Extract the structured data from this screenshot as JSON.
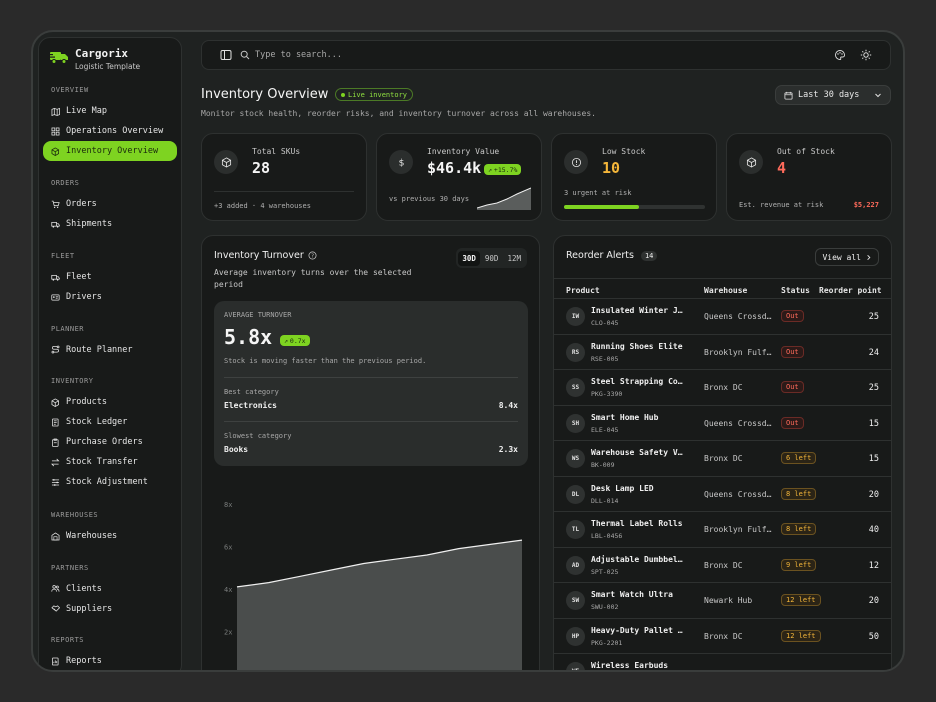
{
  "brand": {
    "name": "Cargorix",
    "subtitle": "Logistic Template",
    "accent": "#7ed321"
  },
  "sidebar": {
    "sections": [
      {
        "heading": "OVERVIEW",
        "items": [
          {
            "label": "Live Map",
            "icon": "map-icon"
          },
          {
            "label": "Operations Overview",
            "icon": "grid-icon"
          },
          {
            "label": "Inventory Overview",
            "icon": "box-icon",
            "active": true
          }
        ]
      },
      {
        "heading": "ORDERS",
        "items": [
          {
            "label": "Orders",
            "icon": "cart-icon"
          },
          {
            "label": "Shipments",
            "icon": "truck-icon"
          }
        ]
      },
      {
        "heading": "FLEET",
        "items": [
          {
            "label": "Fleet",
            "icon": "truck-icon"
          },
          {
            "label": "Drivers",
            "icon": "id-card-icon"
          }
        ]
      },
      {
        "heading": "PLANNER",
        "items": [
          {
            "label": "Route Planner",
            "icon": "route-icon"
          }
        ]
      },
      {
        "heading": "INVENTORY",
        "items": [
          {
            "label": "Products",
            "icon": "package-icon"
          },
          {
            "label": "Stock Ledger",
            "icon": "ledger-icon"
          },
          {
            "label": "Purchase Orders",
            "icon": "clipboard-icon"
          },
          {
            "label": "Stock Transfer",
            "icon": "transfer-icon"
          },
          {
            "label": "Stock Adjustment",
            "icon": "sliders-icon"
          }
        ]
      },
      {
        "heading": "WAREHOUSES",
        "items": [
          {
            "label": "Warehouses",
            "icon": "warehouse-icon"
          }
        ]
      },
      {
        "heading": "PARTNERS",
        "items": [
          {
            "label": "Clients",
            "icon": "users-icon"
          },
          {
            "label": "Suppliers",
            "icon": "handshake-icon"
          }
        ]
      },
      {
        "heading": "REPORTS",
        "items": [
          {
            "label": "Reports",
            "icon": "report-icon"
          }
        ]
      }
    ]
  },
  "topbar": {
    "search_placeholder": "Type to search..."
  },
  "header": {
    "title": "Inventory Overview",
    "live_badge": "Live inventory",
    "subtitle": "Monitor stock health, reorder risks, and inventory turnover across all warehouses.",
    "range": "Last 30 days"
  },
  "stats": {
    "total_skus": {
      "label": "Total SKUs",
      "value": "28",
      "foot": "+3 added · 4 warehouses"
    },
    "inventory_value": {
      "label": "Inventory Value",
      "value": "$46.4k",
      "badge": "+15.7%",
      "foot": "vs previous 30 days"
    },
    "low_stock": {
      "label": "Low Stock",
      "value": "10",
      "foot": "3 urgent at risk",
      "progress": 0.53
    },
    "out_of_stock": {
      "label": "Out of Stock",
      "value": "4",
      "foot": "Est. revenue at risk",
      "foot_value": "$5,227"
    }
  },
  "turnover": {
    "title": "Inventory Turnover",
    "subtitle": "Average inventory turns over the selected period",
    "tabs": [
      "30D",
      "90D",
      "12M"
    ],
    "avg_label": "AVERAGE TURNOVER",
    "avg_value": "5.8x",
    "avg_badge": "0.7x",
    "avg_note": "Stock is moving faster than the previous period.",
    "best_label": "Best category",
    "best_name": "Electronics",
    "best_value": "8.4x",
    "slow_label": "Slowest category",
    "slow_name": "Books",
    "slow_value": "2.3x"
  },
  "chart_data": {
    "type": "area",
    "y_ticks": [
      "8x",
      "6x",
      "4x",
      "2x"
    ],
    "ylim": [
      0,
      8
    ],
    "values": [
      4.1,
      4.3,
      4.6,
      4.9,
      5.2,
      5.4,
      5.6,
      5.9,
      6.1,
      6.3
    ]
  },
  "reorder": {
    "title": "Reorder Alerts",
    "count": "14",
    "view_all": "View all",
    "columns": [
      "Product",
      "Warehouse",
      "Status",
      "Reorder point"
    ],
    "rows": [
      {
        "initials": "IW",
        "name": "Insulated Winter Jacket",
        "sku": "CLO-045",
        "warehouse": "Queens Crossdock",
        "status": "Out",
        "kind": "out",
        "point": "25"
      },
      {
        "initials": "RS",
        "name": "Running Shoes Elite",
        "sku": "RSE-005",
        "warehouse": "Brooklyn Fulfillment",
        "status": "Out",
        "kind": "out",
        "point": "24"
      },
      {
        "initials": "SS",
        "name": "Steel Strapping Coil",
        "sku": "PKG-3390",
        "warehouse": "Bronx DC",
        "status": "Out",
        "kind": "out",
        "point": "25"
      },
      {
        "initials": "SH",
        "name": "Smart Home Hub",
        "sku": "ELE-045",
        "warehouse": "Queens Crossdock",
        "status": "Out",
        "kind": "out",
        "point": "15"
      },
      {
        "initials": "WS",
        "name": "Warehouse Safety Vest",
        "sku": "BK-009",
        "warehouse": "Bronx DC",
        "status": "6 left",
        "kind": "left",
        "point": "15"
      },
      {
        "initials": "DL",
        "name": "Desk Lamp LED",
        "sku": "DLL-014",
        "warehouse": "Queens Crossdock",
        "status": "8 left",
        "kind": "left",
        "point": "20"
      },
      {
        "initials": "TL",
        "name": "Thermal Label Rolls",
        "sku": "LBL-0456",
        "warehouse": "Brooklyn Fulfillment",
        "status": "8 left",
        "kind": "left",
        "point": "40"
      },
      {
        "initials": "AD",
        "name": "Adjustable Dumbbells",
        "sku": "SPT-025",
        "warehouse": "Bronx DC",
        "status": "9 left",
        "kind": "left",
        "point": "12"
      },
      {
        "initials": "SW",
        "name": "Smart Watch Ultra",
        "sku": "SWU-002",
        "warehouse": "Newark Hub",
        "status": "12 left",
        "kind": "left",
        "point": "20"
      },
      {
        "initials": "HP",
        "name": "Heavy-Duty Pallet Jack",
        "sku": "PKG-2201",
        "warehouse": "Bronx DC",
        "status": "12 left",
        "kind": "left",
        "point": "50"
      },
      {
        "initials": "WE",
        "name": "Wireless Earbuds",
        "sku": "",
        "warehouse": "",
        "status": "",
        "kind": "left",
        "point": ""
      }
    ]
  }
}
